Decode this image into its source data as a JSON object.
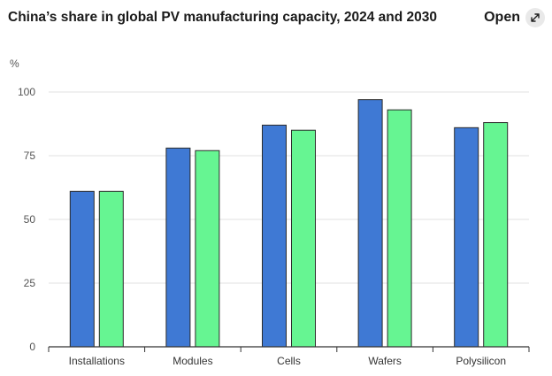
{
  "header": {
    "title": "China’s share in global PV manufacturing capacity, 2024 and 2030",
    "open_label": "Open",
    "open_icon": "expand-arrow-icon"
  },
  "colors": {
    "series_2024": "#3f79d4",
    "series_2030": "#66f592",
    "grid": "#e2e2e2",
    "axis": "#333333",
    "text": "#555555"
  },
  "chart_data": {
    "type": "bar",
    "ylabel": "%",
    "ylim": [
      0,
      100
    ],
    "yticks": [
      0,
      25,
      50,
      75,
      100
    ],
    "grid": true,
    "categories": [
      "Installations",
      "Modules",
      "Cells",
      "Wafers",
      "Polysilicon"
    ],
    "series": [
      {
        "values": [
          61,
          78,
          87,
          97,
          86
        ]
      },
      {
        "values": [
          61,
          77,
          85,
          93,
          88
        ]
      }
    ]
  }
}
